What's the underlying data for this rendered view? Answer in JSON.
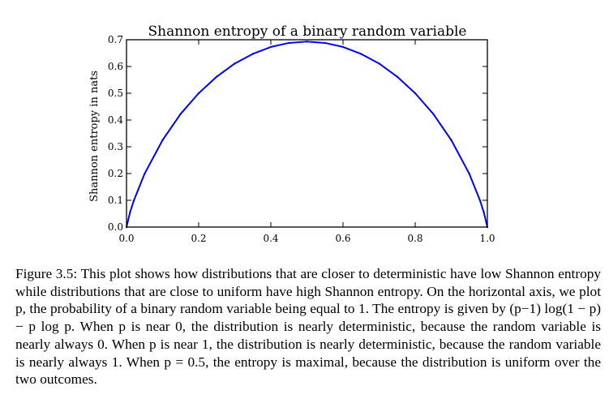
{
  "chart_data": {
    "type": "line",
    "title": "Shannon entropy of a binary random variable",
    "xlabel": "",
    "ylabel": "Shannon entropy in nats",
    "xlim": [
      0.0,
      1.0
    ],
    "ylim": [
      0.0,
      0.7
    ],
    "x_ticks": [
      "0.0",
      "0.2",
      "0.4",
      "0.6",
      "0.8",
      "1.0"
    ],
    "y_ticks": [
      "0.0",
      "0.1",
      "0.2",
      "0.3",
      "0.4",
      "0.5",
      "0.6",
      "0.7"
    ],
    "grid": false,
    "legend": "none",
    "series": [
      {
        "color": "#0000ff",
        "x": [
          0.0,
          0.01,
          0.02,
          0.05,
          0.1,
          0.15,
          0.2,
          0.25,
          0.3,
          0.35,
          0.4,
          0.45,
          0.5,
          0.55,
          0.6,
          0.65,
          0.7,
          0.75,
          0.8,
          0.85,
          0.9,
          0.95,
          0.98,
          0.99,
          1.0
        ],
        "y": [
          0.0,
          0.056,
          0.098,
          0.199,
          0.325,
          0.423,
          0.5,
          0.562,
          0.611,
          0.647,
          0.673,
          0.688,
          0.693,
          0.688,
          0.673,
          0.647,
          0.611,
          0.562,
          0.5,
          0.423,
          0.325,
          0.199,
          0.098,
          0.056,
          0.0
        ]
      }
    ]
  },
  "caption": {
    "label": "Figure 3.5:",
    "text": "This plot shows how distributions that are closer to deterministic have low Shannon entropy while distributions that are close to uniform have high Shannon entropy. On the horizontal axis, we plot p, the probability of a binary random variable being equal to 1. The entropy is given by (p−1) log(1 − p) − p log p. When p is near 0, the distribution is nearly deterministic, because the random variable is nearly always 0. When p is near 1, the distribution is nearly deterministic, because the random variable is nearly always 1. When p = 0.5, the entropy is maximal, because the distribution is uniform over the two outcomes."
  }
}
